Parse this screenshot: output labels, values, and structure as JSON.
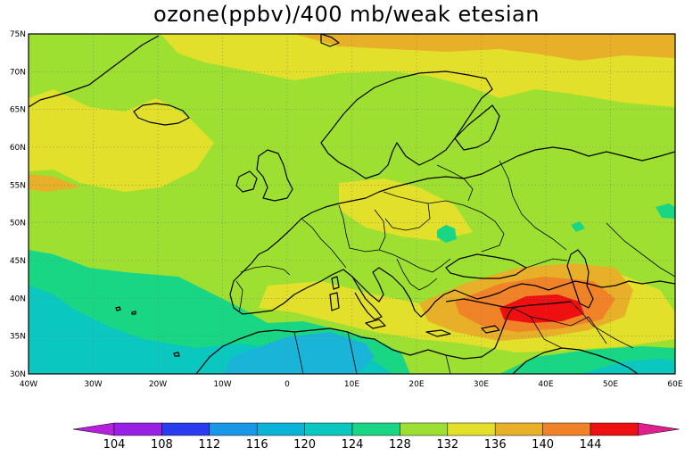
{
  "title": "ozone(ppbv)/400 mb/weak etesian",
  "lon_labels": [
    "40W",
    "30W",
    "20W",
    "10W",
    "0",
    "10E",
    "20E",
    "30E",
    "40E",
    "50E",
    "60E"
  ],
  "lat_labels": [
    "75N",
    "70N",
    "65N",
    "60N",
    "55N",
    "50N",
    "45N",
    "40N",
    "35N",
    "30N"
  ],
  "colorbar": {
    "labels": [
      "104",
      "108",
      "112",
      "116",
      "120",
      "124",
      "128",
      "132",
      "136",
      "140",
      "144"
    ],
    "colors": [
      "#b420dc",
      "#9a20e6",
      "#2a3cf0",
      "#1a98e8",
      "#0ab4d8",
      "#0ac8c0",
      "#18d684",
      "#9ee032",
      "#e2e02a",
      "#e8b028",
      "#f08228",
      "#ee1010",
      "#e0208c"
    ]
  },
  "colors": {
    "background_field": "#9ee032",
    "coastline": "#000000"
  }
}
